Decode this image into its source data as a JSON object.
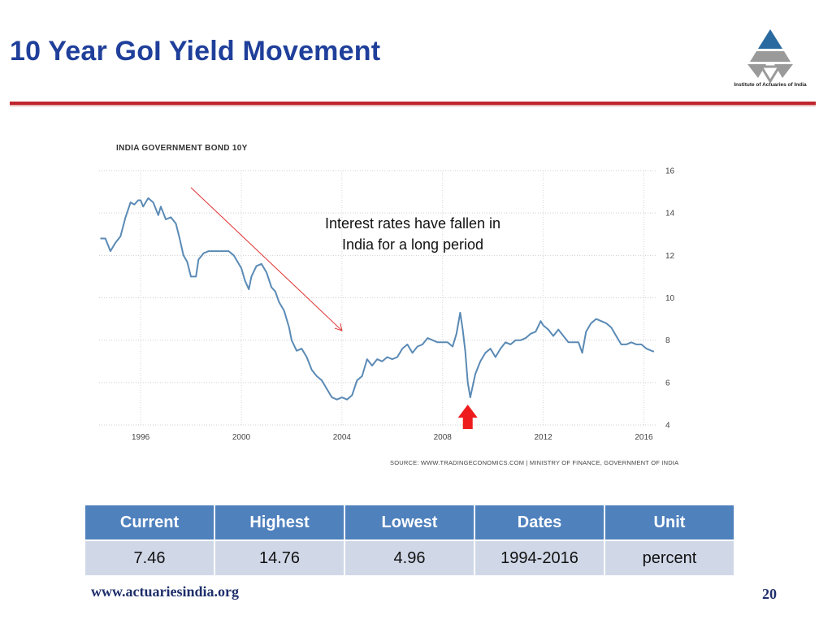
{
  "slide": {
    "title": "10 Year GoI Yield Movement",
    "logo_text": "Institute of Actuaries of India",
    "website": "www.actuariesindia.org",
    "page_number": "20"
  },
  "colors": {
    "title": "#1f3f9a",
    "rule": "#c0252d",
    "line": "#5a8ab5",
    "trend_arrow": "#e03030",
    "red_arrow": "#ee1c1c",
    "table_header": "#4f81bd",
    "table_cell": "#d0d8e8"
  },
  "annotation": {
    "line1": "Interest rates have fallen in",
    "line2": "India for a long period"
  },
  "table": {
    "headers": [
      "Current",
      "Highest",
      "Lowest",
      "Dates",
      "Unit"
    ],
    "values": [
      "7.46",
      "14.76",
      "4.96",
      "1994-2016",
      "percent"
    ]
  },
  "chart_data": {
    "type": "line",
    "title": "INDIA GOVERNMENT BOND 10Y",
    "source": "SOURCE: WWW.TRADINGECONOMICS.COM | MINISTRY OF FINANCE, GOVERNMENT OF INDIA",
    "x_ticks": [
      "1996",
      "2000",
      "2004",
      "2008",
      "2012",
      "2016"
    ],
    "y_ticks": [
      "4",
      "6",
      "8",
      "10",
      "12",
      "14",
      "16"
    ],
    "xlim": [
      1994.35,
      2016.5
    ],
    "ylim": [
      4,
      16
    ],
    "grid": true,
    "y_axis_side": "right",
    "series": [
      {
        "x": [
          1994.4,
          1994.6,
          1994.8,
          1995.0,
          1995.2,
          1995.4,
          1995.6,
          1995.75,
          1995.9,
          1996.0,
          1996.1,
          1996.3,
          1996.5,
          1996.7,
          1996.8,
          1997.0,
          1997.2,
          1997.4,
          1997.55,
          1997.7,
          1997.85,
          1998.0,
          1998.2,
          1998.3,
          1998.5,
          1998.7,
          1998.9,
          1999.1,
          1999.3,
          1999.5,
          1999.7,
          1999.9,
          2000.0,
          2000.15,
          2000.3,
          2000.4,
          2000.6,
          2000.8,
          2001.0,
          2001.2,
          2001.35,
          2001.5,
          2001.7,
          2001.9,
          2002.0,
          2002.2,
          2002.4,
          2002.6,
          2002.8,
          2003.0,
          2003.2,
          2003.4,
          2003.6,
          2003.8,
          2004.0,
          2004.2,
          2004.4,
          2004.6,
          2004.8,
          2005.0,
          2005.2,
          2005.4,
          2005.6,
          2005.8,
          2006.0,
          2006.2,
          2006.4,
          2006.6,
          2006.8,
          2007.0,
          2007.2,
          2007.4,
          2007.6,
          2007.8,
          2008.0,
          2008.2,
          2008.4,
          2008.55,
          2008.7,
          2008.8,
          2008.9,
          2009.0,
          2009.1,
          2009.3,
          2009.5,
          2009.7,
          2009.9,
          2010.1,
          2010.3,
          2010.5,
          2010.7,
          2010.9,
          2011.1,
          2011.3,
          2011.5,
          2011.7,
          2011.9,
          2012.0,
          2012.2,
          2012.4,
          2012.6,
          2012.8,
          2013.0,
          2013.2,
          2013.4,
          2013.55,
          2013.7,
          2013.9,
          2014.1,
          2014.3,
          2014.5,
          2014.7,
          2014.9,
          2015.1,
          2015.3,
          2015.5,
          2015.7,
          2015.9,
          2016.1,
          2016.3,
          2016.4
        ],
        "values": [
          12.8,
          12.8,
          12.2,
          12.6,
          12.9,
          13.8,
          14.5,
          14.4,
          14.6,
          14.6,
          14.3,
          14.7,
          14.5,
          13.9,
          14.3,
          13.7,
          13.8,
          13.5,
          12.8,
          12.0,
          11.7,
          11.0,
          11.0,
          11.8,
          12.1,
          12.2,
          12.2,
          12.2,
          12.2,
          12.2,
          12.0,
          11.6,
          11.4,
          10.8,
          10.4,
          11.0,
          11.5,
          11.6,
          11.2,
          10.5,
          10.3,
          9.8,
          9.4,
          8.6,
          8.0,
          7.5,
          7.6,
          7.2,
          6.6,
          6.3,
          6.1,
          5.7,
          5.3,
          5.2,
          5.3,
          5.2,
          5.4,
          6.1,
          6.3,
          7.1,
          6.8,
          7.1,
          7.0,
          7.2,
          7.1,
          7.2,
          7.6,
          7.8,
          7.4,
          7.7,
          7.8,
          8.1,
          8.0,
          7.9,
          7.9,
          7.9,
          7.7,
          8.3,
          9.3,
          8.5,
          7.5,
          6.0,
          5.3,
          6.4,
          7.0,
          7.4,
          7.6,
          7.2,
          7.6,
          7.9,
          7.8,
          8.0,
          8.0,
          8.1,
          8.3,
          8.4,
          8.9,
          8.7,
          8.5,
          8.2,
          8.5,
          8.2,
          7.9,
          7.9,
          7.9,
          7.4,
          8.4,
          8.8,
          9.0,
          8.9,
          8.8,
          8.6,
          8.2,
          7.8,
          7.8,
          7.9,
          7.8,
          7.8,
          7.6,
          7.5,
          7.46
        ]
      }
    ]
  }
}
